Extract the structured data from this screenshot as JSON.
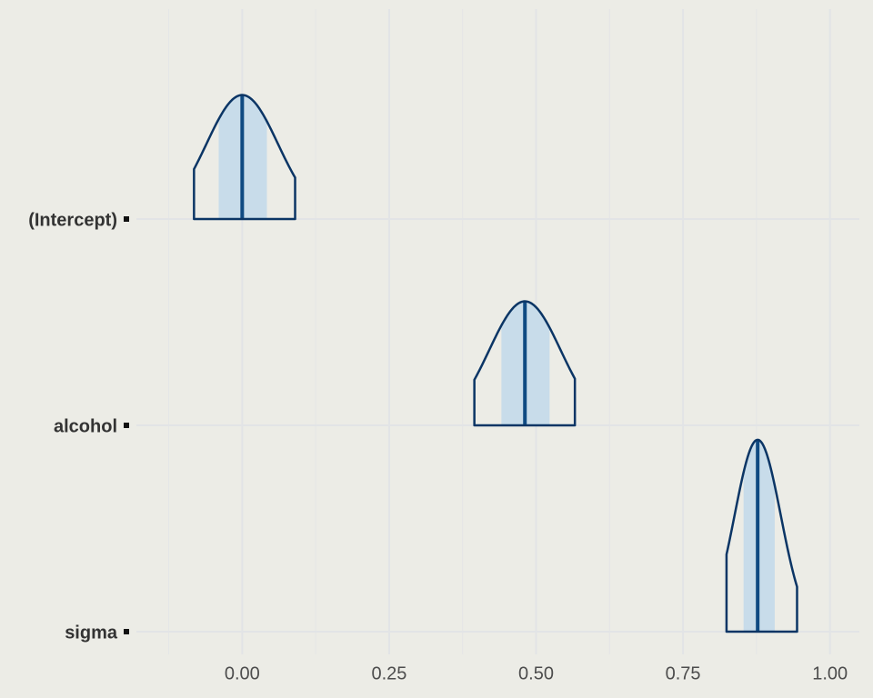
{
  "chart_data": {
    "type": "areas",
    "categories": [
      "(Intercept)",
      "alcohol",
      "sigma"
    ],
    "series": [
      {
        "name": "(Intercept)",
        "median": 0.0,
        "inner": [
          -0.04,
          0.042
        ],
        "outer": [
          -0.082,
          0.09
        ]
      },
      {
        "name": "alcohol",
        "median": 0.481,
        "inner": [
          0.441,
          0.523
        ],
        "outer": [
          0.395,
          0.566
        ]
      },
      {
        "name": "sigma",
        "median": 0.877,
        "inner": [
          0.853,
          0.906
        ],
        "outer": [
          0.824,
          0.944
        ]
      }
    ],
    "xlim": [
      -0.18,
      1.05
    ],
    "xticks": [
      {
        "value": 0,
        "label": "0.00"
      },
      {
        "value": 0.25,
        "label": "0.25"
      },
      {
        "value": 0.5,
        "label": "0.50"
      },
      {
        "value": 0.75,
        "label": "0.75"
      },
      {
        "value": 1,
        "label": "1.00"
      }
    ],
    "grid": true,
    "outline_color": "#0b3565",
    "fill_color": "#c8dcea",
    "median_color": "#0f4a82"
  }
}
